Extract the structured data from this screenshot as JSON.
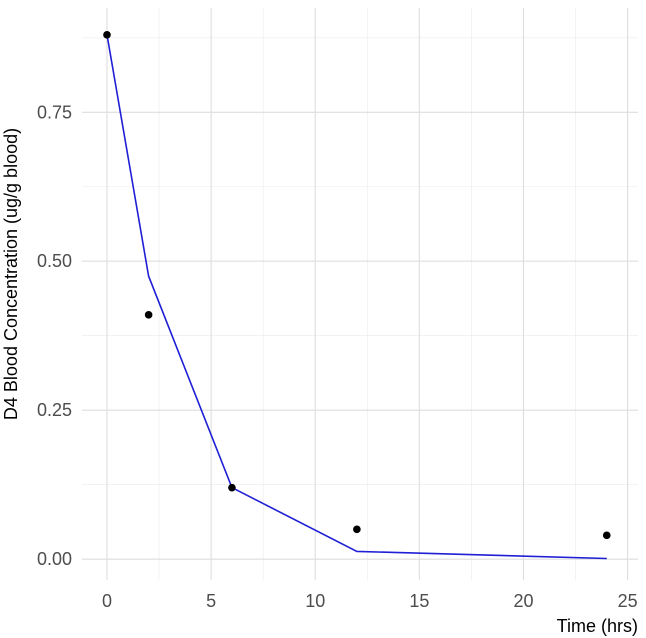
{
  "chart_data": {
    "type": "line",
    "title": "",
    "xlabel": "Time (hrs)",
    "ylabel": "D4 Blood Concentration (ug/g blood)",
    "xlim": [
      -1.2,
      25.5
    ],
    "ylim": [
      -0.035,
      0.925
    ],
    "x_ticks": [
      0,
      5,
      10,
      15,
      20,
      25
    ],
    "x_tick_labels": [
      "0",
      "5",
      "10",
      "15",
      "20",
      "25"
    ],
    "y_ticks": [
      0.0,
      0.25,
      0.5,
      0.75
    ],
    "y_tick_labels": [
      "0.00",
      "0.25",
      "0.50",
      "0.75"
    ],
    "grid": true,
    "legend": "none",
    "series": [
      {
        "kind": "scatter",
        "color": "#000000",
        "points": [
          {
            "x": 0,
            "y": 0.88
          },
          {
            "x": 2,
            "y": 0.41
          },
          {
            "x": 6,
            "y": 0.12
          },
          {
            "x": 12,
            "y": 0.05
          },
          {
            "x": 24,
            "y": 0.04
          }
        ]
      },
      {
        "kind": "line",
        "color": "#1f1fd6",
        "points": [
          {
            "x": 0,
            "y": 0.88
          },
          {
            "x": 2,
            "y": 0.475
          },
          {
            "x": 6,
            "y": 0.12
          },
          {
            "x": 12,
            "y": 0.013
          },
          {
            "x": 24,
            "y": 0.001
          }
        ]
      }
    ]
  }
}
